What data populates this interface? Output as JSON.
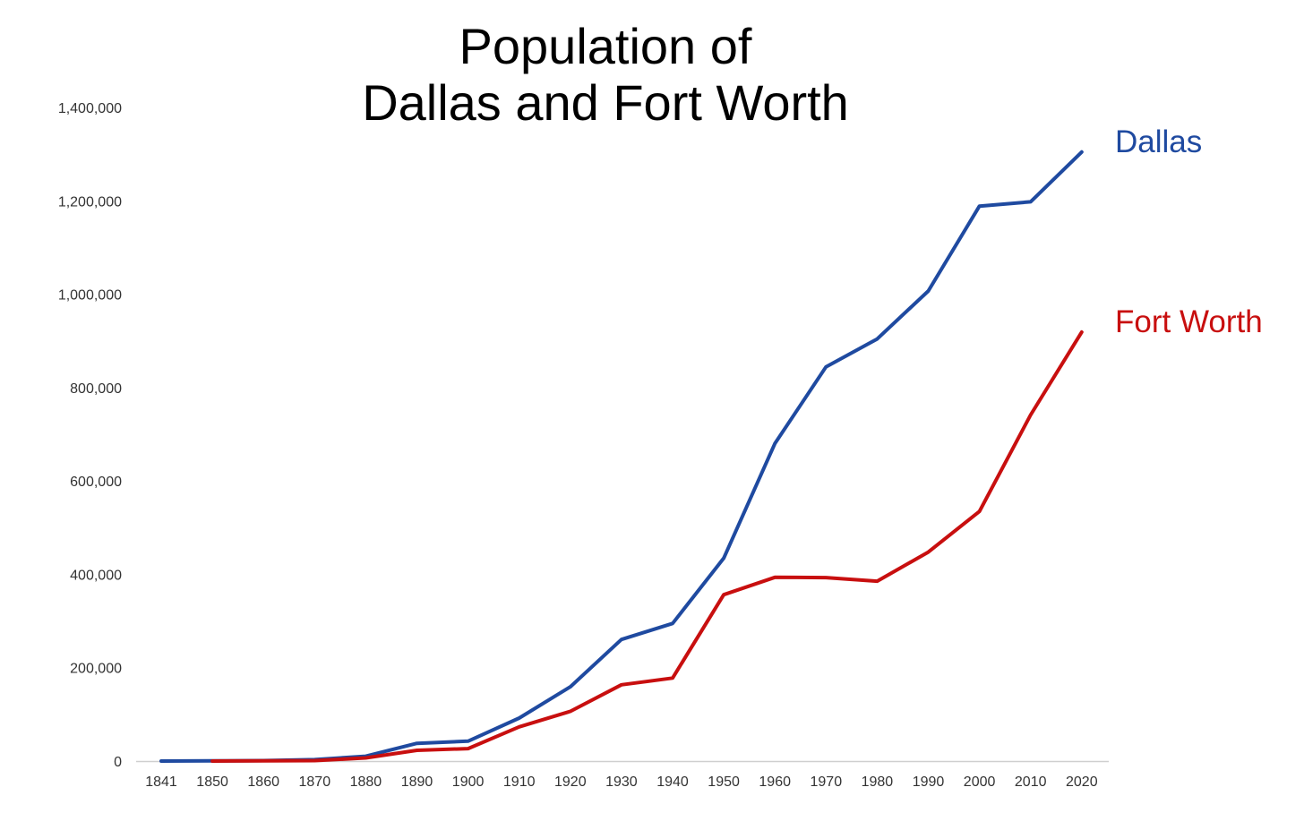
{
  "chart_data": {
    "type": "line",
    "title_lines": [
      "Population of",
      "Dallas and Fort Worth"
    ],
    "xlabel": "",
    "ylabel": "",
    "ylim": [
      0,
      1400000
    ],
    "yticks": [
      0,
      200000,
      400000,
      600000,
      800000,
      1000000,
      1200000,
      1400000
    ],
    "ytick_labels": [
      "0",
      "200,000",
      "400,000",
      "600,000",
      "800,000",
      "1,000,000",
      "1,200,000",
      "1,400,000"
    ],
    "categories": [
      "1841",
      "1850",
      "1860",
      "1870",
      "1880",
      "1890",
      "1900",
      "1910",
      "1920",
      "1930",
      "1940",
      "1950",
      "1960",
      "1970",
      "1980",
      "1990",
      "2000",
      "2010",
      "2020"
    ],
    "grid": false,
    "legend": "direct labels at line ends",
    "series": [
      {
        "name": "Dallas",
        "color": "#1f4aa0",
        "values": [
          0,
          430,
          1000,
          3000,
          10400,
          38000,
          42600,
          92100,
          159000,
          260500,
          294700,
          434500,
          680000,
          844400,
          904100,
          1006900,
          1188600,
          1197800,
          1304400
        ]
      },
      {
        "name": "Fort Worth",
        "color": "#c80f0f",
        "values": [
          null,
          0,
          500,
          1000,
          6700,
          23100,
          26700,
          73300,
          106500,
          163400,
          177700,
          356300,
          393500,
          393000,
          385200,
          447600,
          534700,
          741200,
          918900
        ]
      }
    ]
  }
}
